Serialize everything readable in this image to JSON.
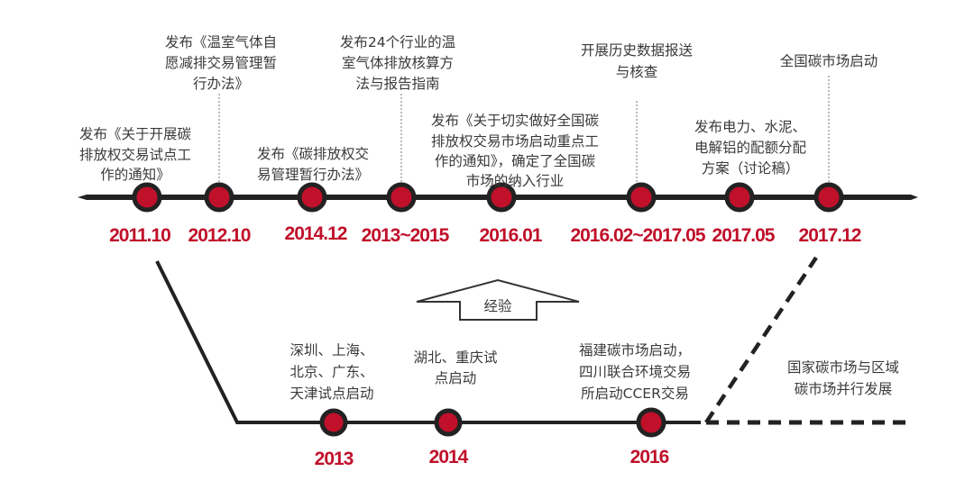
{
  "colors": {
    "accent": "#c0102a",
    "line": "#222222",
    "text": "#3a3a3a"
  },
  "top_timeline": [
    {
      "date": "2011.10",
      "lines": [
        "发布《关于开展碳",
        "排放权交易试点工",
        "作的通知》"
      ]
    },
    {
      "date": "2012.10",
      "lines": [
        "发布《温室气体自",
        "愿减排交易管理暂",
        "行办法》"
      ]
    },
    {
      "date": "2014.12",
      "lines": [
        "发布《碳排放权交",
        "易管理暂行办法》"
      ]
    },
    {
      "date": "2013~2015",
      "lines": [
        "发布24个行业的温",
        "室气体排放核算方",
        "法与报告指南"
      ]
    },
    {
      "date": "2016.01",
      "lines": [
        "发布《关于切实做好全国碳",
        "排放权交易市场启动重点工",
        "作的通知》，确定了全国碳",
        "市场的纳入行业"
      ]
    },
    {
      "date": "2016.02~2017.05",
      "lines": [
        "开展历史数据报送",
        "与核查"
      ]
    },
    {
      "date": "2017.05",
      "lines": [
        "发布电力、水泥、",
        "电解铝的配额分配",
        "方案（讨论稿）"
      ]
    },
    {
      "date": "2017.12",
      "lines": [
        "全国碳市场启动"
      ]
    }
  ],
  "arrow_label": "经验",
  "bottom_timeline": [
    {
      "date": "2013",
      "lines": [
        "深圳、上海、",
        "北京、广东、",
        "天津试点启动"
      ]
    },
    {
      "date": "2014",
      "lines": [
        "湖北、重庆试",
        "点启动"
      ]
    },
    {
      "date": "2016",
      "lines": [
        "福建碳市场启动，",
        "四川联合环境交易",
        "所启动CCER交易"
      ]
    }
  ],
  "future_note": [
    "国家碳市场与区域",
    "碳市场并行发展"
  ]
}
